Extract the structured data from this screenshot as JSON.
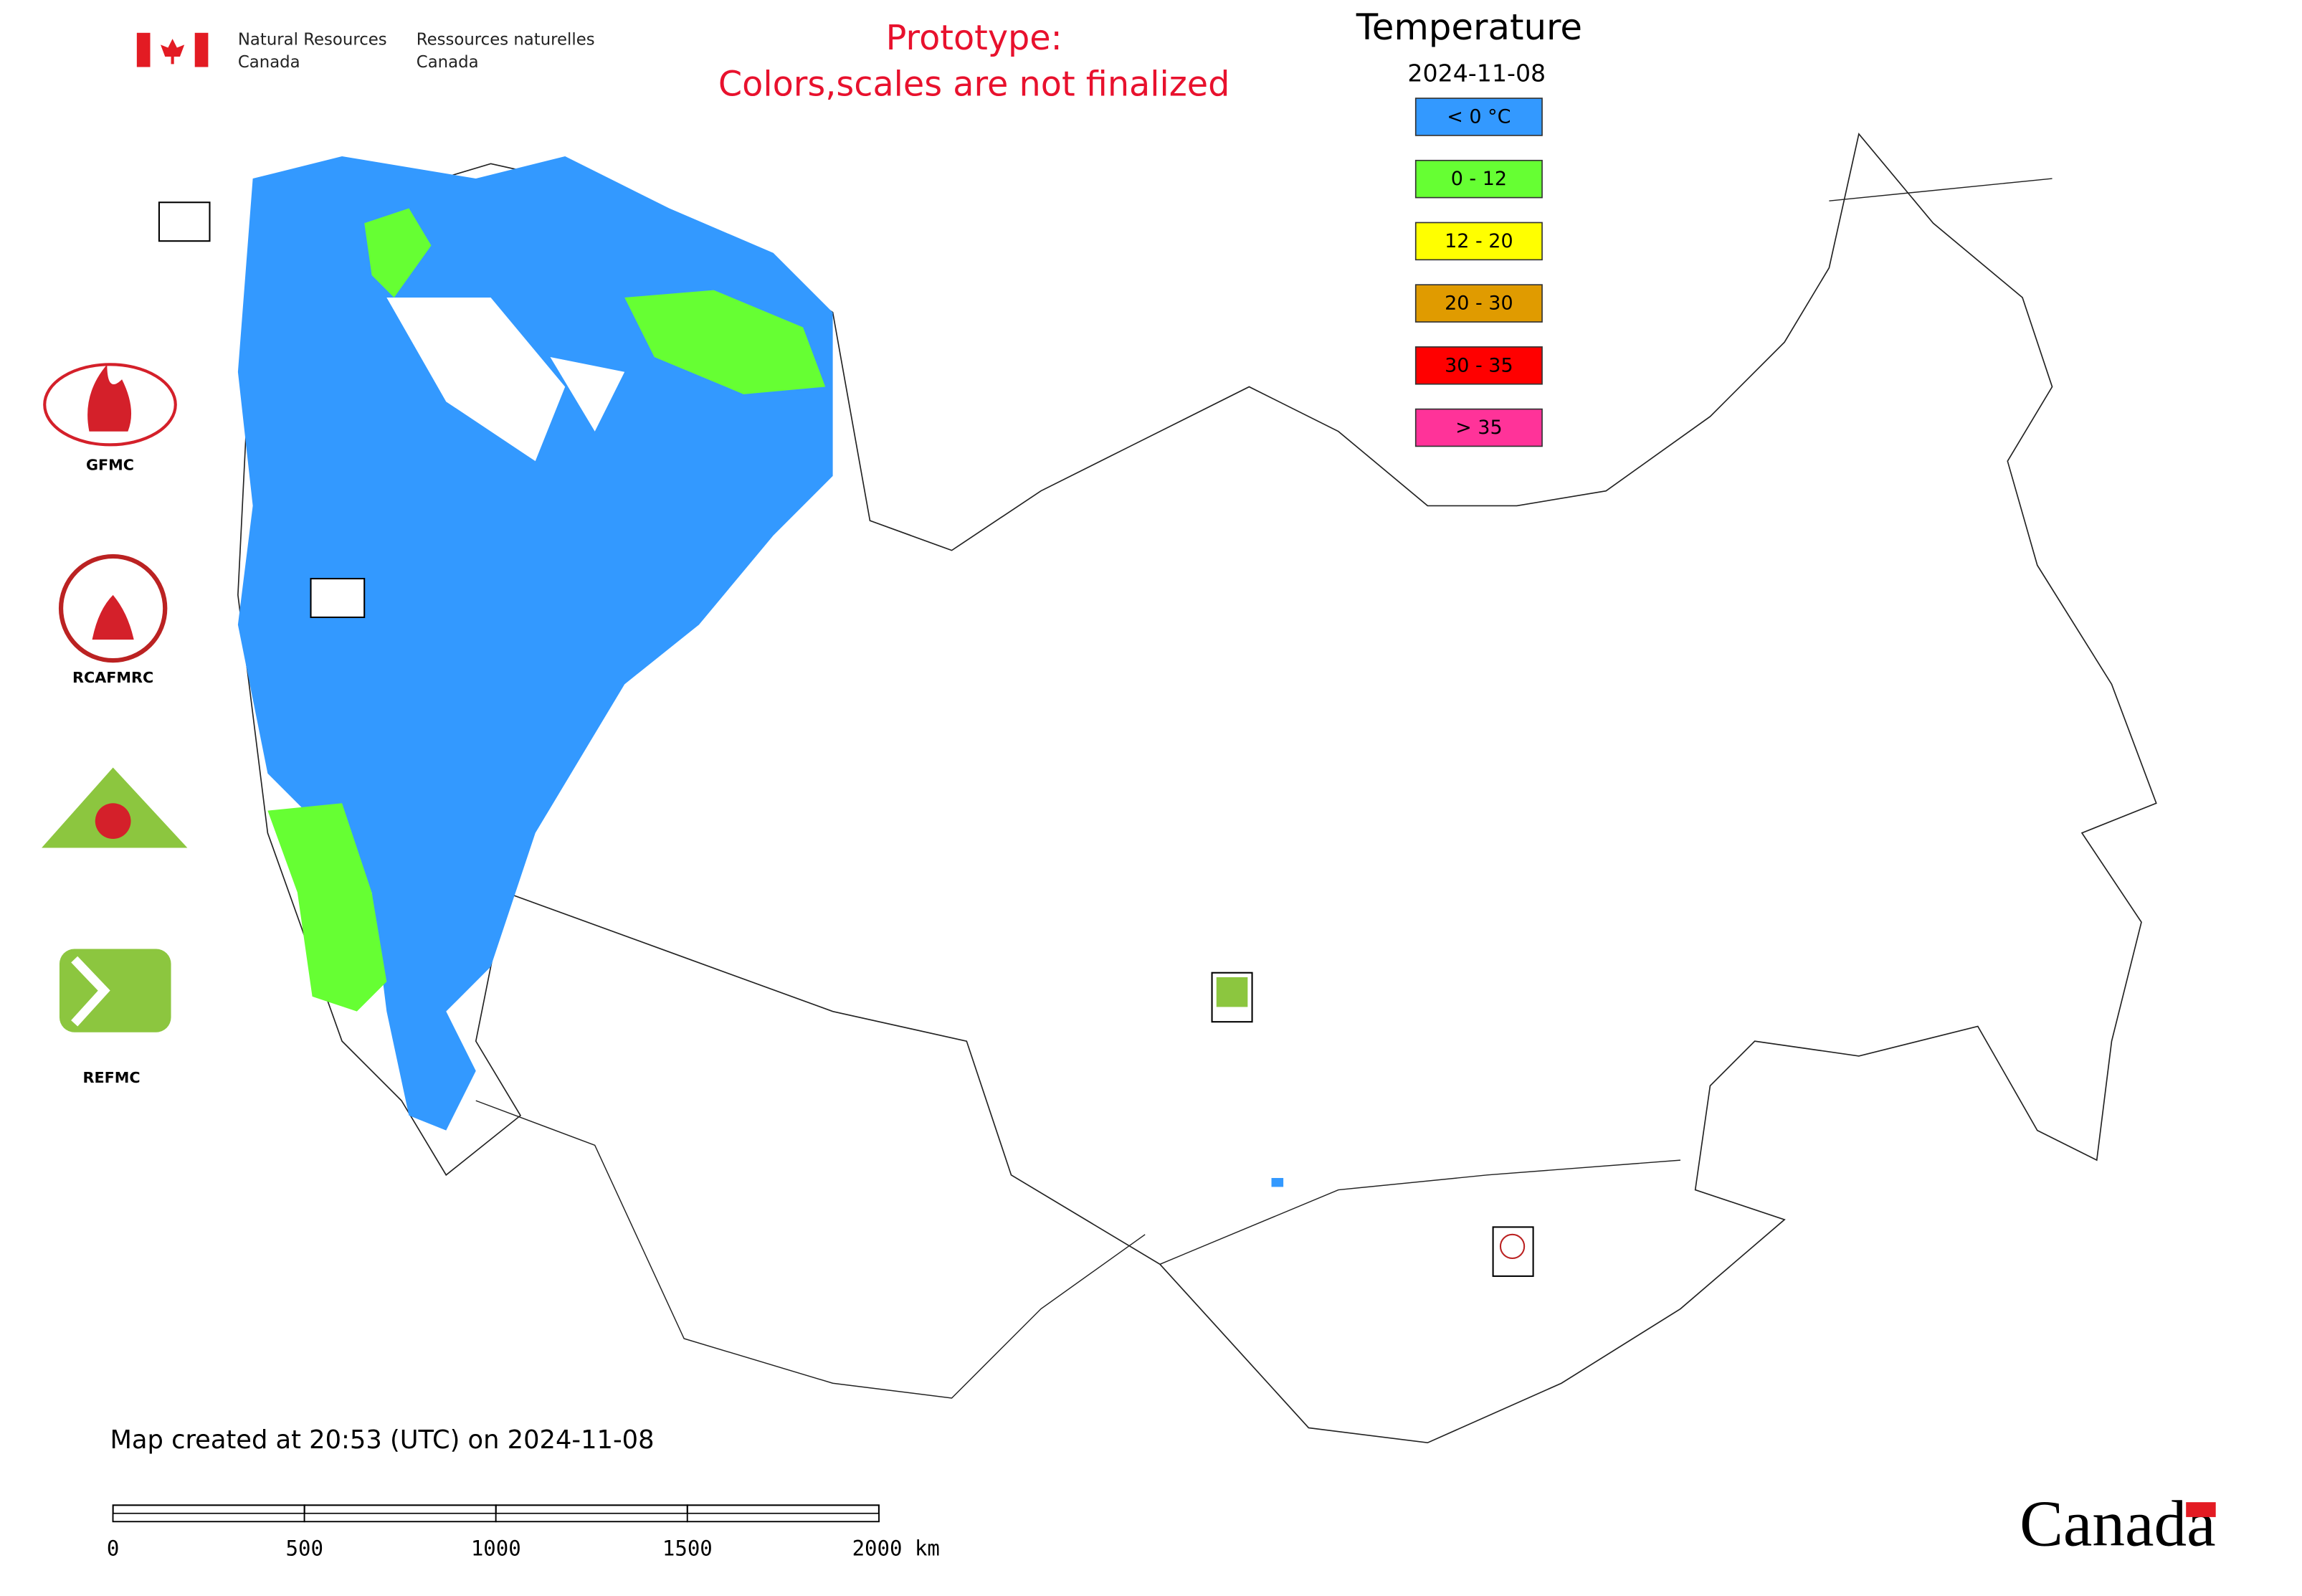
{
  "header": {
    "agency_en": [
      "Natural Resources",
      "Canada"
    ],
    "agency_fr": [
      "Ressources naturelles",
      "Canada"
    ]
  },
  "notice": [
    "Prototype:",
    "Colors,scales are not finalized"
  ],
  "legend": {
    "title": "Temperature",
    "date": "2024-11-08",
    "items": [
      {
        "label": "< 0 °C",
        "color": "#3399ff"
      },
      {
        "label": "0 - 12",
        "color": "#66ff33"
      },
      {
        "label": "12 - 20",
        "color": "#ffff00"
      },
      {
        "label": "20 - 30",
        "color": "#e09b00"
      },
      {
        "label": "30 - 35",
        "color": "#ff0000"
      },
      {
        "label": "> 35",
        "color": "#ff3399"
      }
    ]
  },
  "logos": [
    "GFMC",
    "RCAFMRC",
    "REFMC"
  ],
  "footer": {
    "created": "Map created at 20:53 (UTC) on 2024-11-08",
    "scale_labels": [
      "0",
      "500",
      "1000",
      "1500",
      "2000 km"
    ],
    "wordmark": "Canada"
  }
}
